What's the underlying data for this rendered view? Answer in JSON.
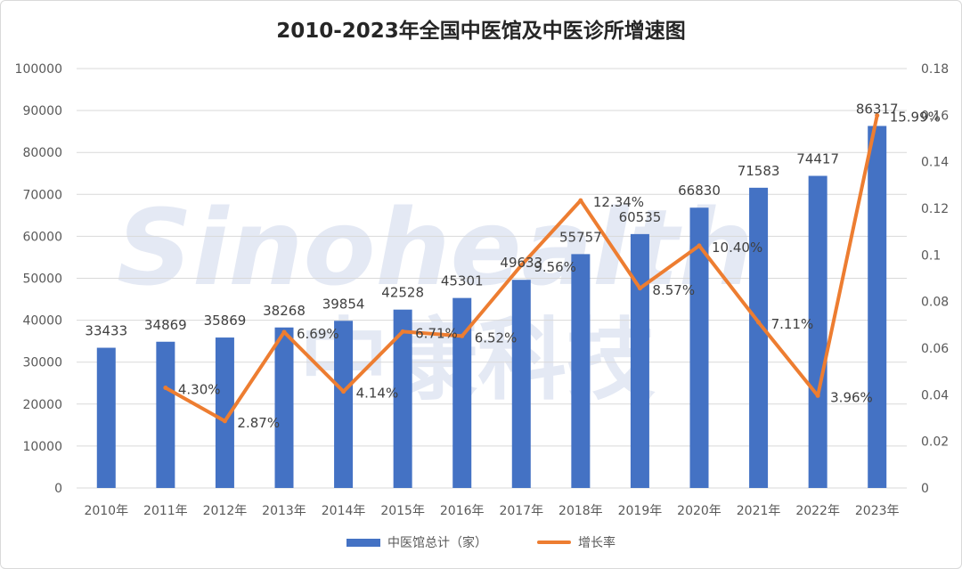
{
  "colors": {
    "bar": "#4472C4",
    "line": "#ED7D31",
    "grid": "#d9d9d9",
    "watermark": "#e4e9f4"
  },
  "watermark": {
    "latin": "Sinohealth",
    "cjk": "中康科技"
  },
  "chart_data": {
    "type": "bar",
    "title": "2010-2023年全国中医馆及中医诊所增速图",
    "categories": [
      "2010年",
      "2011年",
      "2012年",
      "2013年",
      "2014年",
      "2015年",
      "2016年",
      "2017年",
      "2018年",
      "2019年",
      "2020年",
      "2021年",
      "2022年",
      "2023年"
    ],
    "series": [
      {
        "name": "中医馆总计（家）",
        "type": "bar",
        "axis": "left",
        "values": [
          33433,
          34869,
          35869,
          38268,
          39854,
          42528,
          45301,
          49633,
          55757,
          60535,
          66830,
          71583,
          74417,
          86317
        ],
        "labels": [
          "33433",
          "34869",
          "35869",
          "38268",
          "39854",
          "42528",
          "45301",
          "49633",
          "55757",
          "60535",
          "66830",
          "71583",
          "74417",
          "86317"
        ]
      },
      {
        "name": "增长率",
        "type": "line",
        "axis": "right",
        "values": [
          null,
          0.043,
          0.0287,
          0.0669,
          0.0414,
          0.0671,
          0.0652,
          0.0956,
          0.1234,
          0.0857,
          0.104,
          0.0711,
          0.0396,
          0.1599
        ],
        "labels": [
          "",
          "4.30%",
          "2.87%",
          "6.69%",
          "4.14%",
          "6.71%",
          "6.52%",
          "9.56%",
          "12.34%",
          "8.57%",
          "10.40%",
          "7.11%",
          "3.96%",
          "15.99%"
        ]
      }
    ],
    "ylim_left": [
      0,
      100000
    ],
    "yticks_left": [
      "0",
      "10000",
      "20000",
      "30000",
      "40000",
      "50000",
      "60000",
      "70000",
      "80000",
      "90000",
      "100000"
    ],
    "ylim_right": [
      0,
      0.18
    ],
    "yticks_right": [
      "0",
      "0.02",
      "0.04",
      "0.06",
      "0.08",
      "0.1",
      "0.12",
      "0.14",
      "0.16",
      "0.18"
    ],
    "grid": true,
    "legend_position": "bottom"
  }
}
